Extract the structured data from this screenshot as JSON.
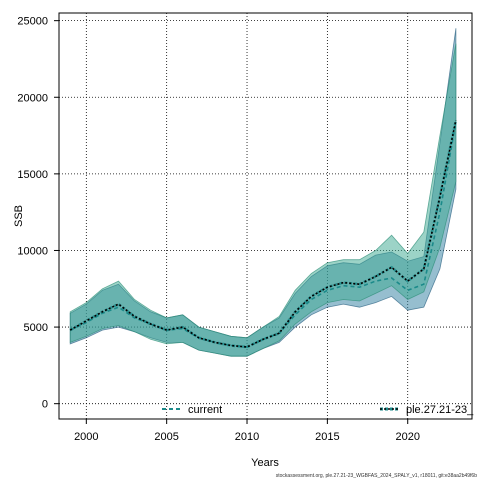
{
  "chart_data": {
    "type": "area",
    "xlabel": "Years",
    "ylabel": "SSB",
    "xlim": [
      1998.3,
      2024.0
    ],
    "ylim": [
      -1000,
      25500
    ],
    "x_ticks": [
      2000,
      2005,
      2010,
      2015,
      2020
    ],
    "y_ticks": [
      0,
      5000,
      10000,
      15000,
      20000,
      25000
    ],
    "grid": true,
    "legend_placement": "bottom",
    "x": [
      1999,
      2000,
      2001,
      2002,
      2003,
      2004,
      2005,
      2006,
      2007,
      2008,
      2009,
      2010,
      2011,
      2012,
      2013,
      2014,
      2015,
      2016,
      2017,
      2018,
      2019,
      2020,
      2021,
      2022,
      2023
    ],
    "series": [
      {
        "name": "current",
        "color": "#1b8a8a",
        "band_color": "#2e7da0",
        "values": [
          4800,
          5300,
          5900,
          6300,
          5600,
          5200,
          4800,
          4900,
          4300,
          4000,
          3800,
          3700,
          4200,
          4600,
          5800,
          6800,
          7400,
          7700,
          7600,
          8000,
          8200,
          7400,
          7800,
          12500,
          18400
        ],
        "lower": [
          3900,
          4300,
          4800,
          5000,
          4700,
          4300,
          4000,
          4000,
          3500,
          3300,
          3100,
          3100,
          3600,
          4000,
          5000,
          5800,
          6300,
          6500,
          6300,
          6600,
          7000,
          6100,
          6300,
          8800,
          14000
        ],
        "upper": [
          5900,
          6500,
          7400,
          7800,
          6700,
          6000,
          5600,
          5800,
          5000,
          4700,
          4400,
          4300,
          5000,
          5600,
          7200,
          8300,
          9000,
          9200,
          9100,
          9700,
          9900,
          9300,
          9600,
          17000,
          24500
        ]
      },
      {
        "name": "ple.27.21-23_",
        "color": "#000000",
        "band_color": "#3aa890",
        "values": [
          4800,
          5400,
          6000,
          6500,
          5700,
          5200,
          4800,
          5000,
          4300,
          4000,
          3800,
          3700,
          4200,
          4600,
          6000,
          7000,
          7600,
          7900,
          7800,
          8300,
          8900,
          8000,
          8800,
          13500,
          18500
        ],
        "lower": [
          4000,
          4400,
          4900,
          5100,
          4700,
          4200,
          3900,
          4000,
          3500,
          3300,
          3100,
          3100,
          3600,
          4100,
          5200,
          6000,
          6600,
          6800,
          6700,
          7200,
          7700,
          6800,
          7300,
          10200,
          14500
        ],
        "upper": [
          6000,
          6600,
          7500,
          8000,
          6800,
          6100,
          5600,
          5800,
          5000,
          4700,
          4400,
          4300,
          5000,
          5700,
          7400,
          8500,
          9200,
          9400,
          9400,
          10000,
          11000,
          9800,
          11200,
          17500,
          23500
        ]
      }
    ]
  },
  "footer": "stockassessment.org, ple.27.21-23_WGBFAS_2024_SPALY_v1, r18011, git:e38aa2b49f6b"
}
